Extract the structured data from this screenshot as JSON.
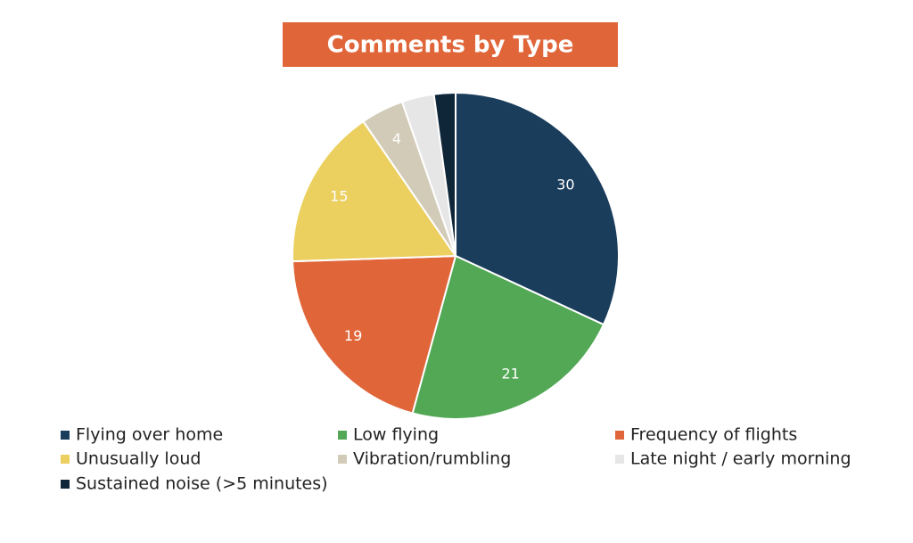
{
  "chart_data": {
    "type": "pie",
    "title": "Comments by Type",
    "categories": [
      "Flying over home",
      "Low flying",
      "Frequency of flights",
      "Unusually loud",
      "Vibration/rumbling",
      "Late night / early morning",
      "Sustained noise (>5 minutes)"
    ],
    "values": [
      30,
      21,
      19,
      15,
      4,
      3,
      2
    ],
    "colors": [
      "#1b3d5c",
      "#52a855",
      "#e0663a",
      "#ebcf5f",
      "#d2cbb8",
      "#e6e6e6",
      "#0f2638"
    ],
    "title_color": "#e0663a"
  }
}
